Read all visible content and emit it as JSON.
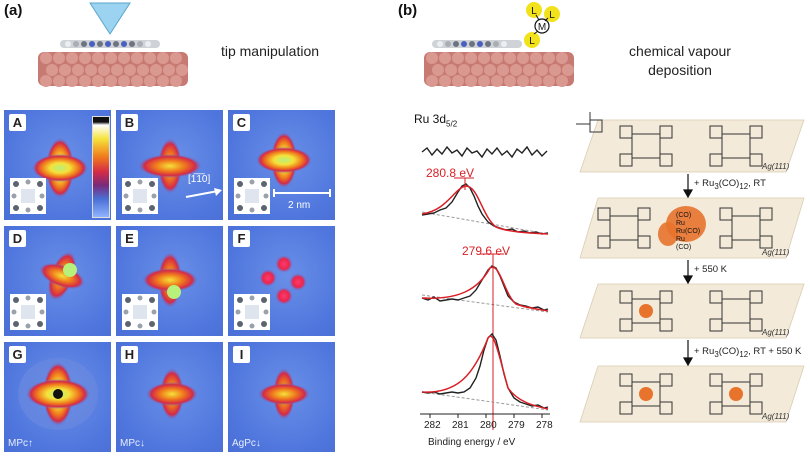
{
  "panel_a": {
    "tag": "(a)",
    "caption": "tip manipulation",
    "tiles": [
      {
        "letter": "A",
        "label": ""
      },
      {
        "letter": "B",
        "label": ""
      },
      {
        "letter": "C",
        "label": ""
      },
      {
        "letter": "D",
        "label": ""
      },
      {
        "letter": "E",
        "label": ""
      },
      {
        "letter": "F",
        "label": ""
      },
      {
        "letter": "G",
        "label": "MPc↑"
      },
      {
        "letter": "H",
        "label": "MPc↓"
      },
      {
        "letter": "I",
        "label": "AgPc↓"
      }
    ],
    "direction_label": "[1̅1̅0]",
    "scale_label": "2 nm"
  },
  "panel_b": {
    "tag": "(b)",
    "caption_line1": "chemical vapour",
    "caption_line2": "deposition",
    "complex_center": "M",
    "complex_ligand": "L",
    "spectra": {
      "title": "Ru 3d",
      "title_sub": "5/2",
      "peak1": "280.8 eV",
      "peak2": "279.6 eV",
      "x_ticks": [
        "282",
        "281",
        "280",
        "279",
        "278"
      ],
      "xlabel": "Binding energy / eV"
    },
    "scheme": {
      "step1": "+ Ru",
      "step1_sub": "3",
      "step1_tail": "(CO)",
      "step1_sub2": "12",
      "step1_end": ", RT",
      "step2": "+ 550 K",
      "step3": "+ Ru",
      "step3_sub": "3",
      "step3_tail": "(CO)",
      "step3_sub2": "12",
      "step3_end": ", RT + 550 K",
      "surface_label": "Ag(111)",
      "ru_cluster_labels": [
        "(CO)",
        "Ru",
        "Ru(CO)",
        "Ru",
        "(CO)"
      ]
    }
  },
  "colors": {
    "stm_background": "#4f76dd",
    "substrate": "#c77a72",
    "tip": "#9bd3f0",
    "fit_line": "#d91f26",
    "ru_highlight": "#e8732c",
    "ligand_yellow": "#f2e21b"
  }
}
